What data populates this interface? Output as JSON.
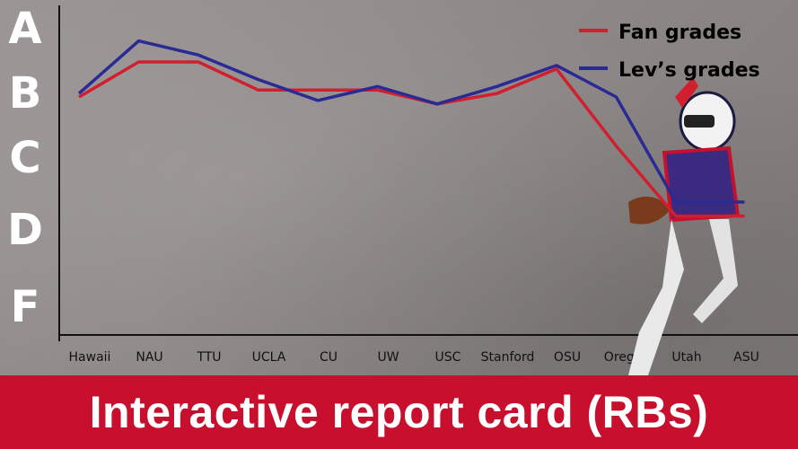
{
  "banner": {
    "title": "Interactive report card (RBs)"
  },
  "colors": {
    "fan": "#d11f2f",
    "lev": "#2a2a94",
    "banner": "#c8102e"
  },
  "images": {
    "player_photo": "football-player-photo"
  },
  "chart_data": {
    "type": "line",
    "categories": [
      "Hawaii",
      "NAU",
      "TTU",
      "UCLA",
      "CU",
      "UW",
      "USC",
      "Stanford",
      "OSU",
      "Oregon",
      "Utah",
      "ASU"
    ],
    "y_grades": [
      "A",
      "B",
      "C",
      "D",
      "F"
    ],
    "ylim": [
      0,
      4
    ],
    "legend_position": "top-right",
    "series": [
      {
        "name": "Fan grades",
        "values": [
          3.0,
          3.5,
          3.5,
          3.1,
          3.1,
          3.1,
          2.9,
          3.05,
          3.4,
          2.3,
          1.3,
          1.3
        ]
      },
      {
        "name": "Lev’s grades",
        "values": [
          3.05,
          3.8,
          3.6,
          3.25,
          2.95,
          3.15,
          2.9,
          3.15,
          3.45,
          3.0,
          1.5,
          1.5
        ]
      }
    ]
  }
}
